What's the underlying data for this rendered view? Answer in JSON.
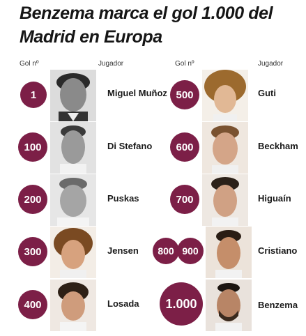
{
  "title": "Benzema marca el gol 1.000 del Madrid en Europa",
  "headers": {
    "left_goal": "Gol nº",
    "left_player": "Jugador",
    "right_goal": "Gol nº",
    "right_player": "Jugador"
  },
  "colors": {
    "badge": "#7c1f47",
    "text": "#1a1a1a"
  },
  "left": [
    {
      "goal": "1",
      "player": "Miguel Muñoz"
    },
    {
      "goal": "100",
      "player": "Di Stefano"
    },
    {
      "goal": "200",
      "player": "Puskas"
    },
    {
      "goal": "300",
      "player": "Jensen"
    },
    {
      "goal": "400",
      "player": "Losada"
    }
  ],
  "right": [
    {
      "goals": [
        "500"
      ],
      "player": "Guti"
    },
    {
      "goals": [
        "600"
      ],
      "player": "Beckham"
    },
    {
      "goals": [
        "700"
      ],
      "player": "Higuaín"
    },
    {
      "goals": [
        "800",
        "900"
      ],
      "player": "Cristiano"
    },
    {
      "goals": [
        "1.000"
      ],
      "player": "Benzema"
    }
  ]
}
